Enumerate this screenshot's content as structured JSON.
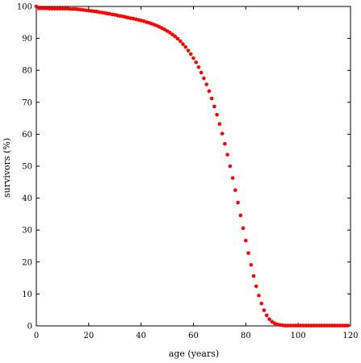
{
  "chart_data": {
    "type": "scatter",
    "title": "",
    "xlabel": "age (years)",
    "ylabel": "survivors (%)",
    "xlim": [
      0,
      120
    ],
    "ylim": [
      0,
      100
    ],
    "grid": false,
    "legend": "none",
    "marker_color": "#ff0000",
    "xticks": [
      0,
      20,
      40,
      60,
      80,
      100,
      120
    ],
    "yticks": [
      0,
      10,
      20,
      30,
      40,
      50,
      60,
      70,
      80,
      90,
      100
    ],
    "series": [
      {
        "x": [
          0,
          1,
          2,
          3,
          4,
          5,
          6,
          7,
          8,
          9,
          10,
          11,
          12,
          13,
          14,
          15,
          16,
          17,
          18,
          19,
          20,
          21,
          22,
          23,
          24,
          25,
          26,
          27,
          28,
          29,
          30,
          31,
          32,
          33,
          34,
          35,
          36,
          37,
          38,
          39,
          40,
          41,
          42,
          43,
          44,
          45,
          46,
          47,
          48,
          49,
          50,
          51,
          52,
          53,
          54,
          55,
          56,
          57,
          58,
          59,
          60,
          61,
          62,
          63,
          64,
          65,
          66,
          67,
          68,
          69,
          70,
          71,
          72,
          73,
          74,
          75,
          76,
          77,
          78,
          79,
          80,
          81,
          82,
          83,
          84,
          85,
          86,
          87,
          88,
          89,
          90,
          91,
          92,
          93,
          94,
          95,
          96,
          97,
          98,
          99,
          100,
          101,
          102,
          103,
          104,
          105,
          106,
          107,
          108,
          109,
          110,
          111,
          112,
          113,
          114,
          115,
          116,
          117,
          118,
          119
        ],
        "y": [
          100,
          99.4,
          99.4,
          99.4,
          99.4,
          99.3,
          99.3,
          99.3,
          99.3,
          99.3,
          99.3,
          99.3,
          99.3,
          99.2,
          99.2,
          99.2,
          99.1,
          99.0,
          98.9,
          98.8,
          98.7,
          98.6,
          98.5,
          98.4,
          98.2,
          98.1,
          98.0,
          97.8,
          97.7,
          97.5,
          97.4,
          97.2,
          97.0,
          96.9,
          96.7,
          96.5,
          96.3,
          96.2,
          96.0,
          95.8,
          95.6,
          95.4,
          95.1,
          94.9,
          94.6,
          94.3,
          94.0,
          93.6,
          93.2,
          92.8,
          92.3,
          91.8,
          91.2,
          90.6,
          89.9,
          89.1,
          88.2,
          87.3,
          86.2,
          85.1,
          83.8,
          82.5,
          81.0,
          79.3,
          77.5,
          75.6,
          73.5,
          71.2,
          68.7,
          66.1,
          63.2,
          60.2,
          57.0,
          53.6,
          50.0,
          46.3,
          42.5,
          38.6,
          34.6,
          30.6,
          26.7,
          22.8,
          19.1,
          15.6,
          12.4,
          9.5,
          7.0,
          4.9,
          3.3,
          2.1,
          1.3,
          0.8,
          0.5,
          0.3,
          0.2,
          0.1,
          0.1,
          0.1,
          0.1,
          0.1,
          0.1,
          0.1,
          0.1,
          0.1,
          0.1,
          0.1,
          0.1,
          0.1,
          0.1,
          0.1,
          0.1,
          0.1,
          0.1,
          0.1,
          0.1,
          0.1,
          0.1,
          0.1,
          0.1,
          0.1
        ]
      }
    ]
  }
}
